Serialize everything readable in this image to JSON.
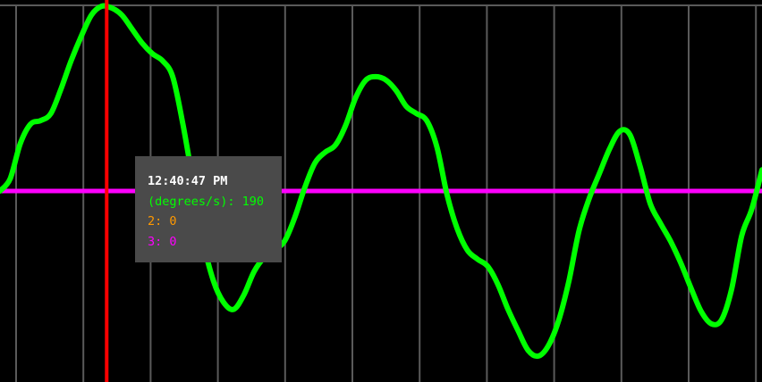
{
  "colors": {
    "background": "#000000",
    "grid": "#5a5a5a",
    "series_1": "#00ff00",
    "series_2": "#ff9900",
    "series_3": "#ff00ff",
    "cursor": "#ff0000",
    "tooltip_background": "#4a4a4a"
  },
  "tooltip": {
    "time": "12:40:47 PM",
    "rows": [
      {
        "label": "(degrees/s): 190",
        "color": "#00ff00"
      },
      {
        "label": "2: 0",
        "color": "#ff9900"
      },
      {
        "label": "3: 0",
        "color": "#ff00ff"
      }
    ]
  },
  "chart_data": {
    "type": "line",
    "title": "",
    "xlabel": "",
    "ylabel": "",
    "grid": true,
    "axis_labels_visible": false,
    "cursor_x": 1.05,
    "xlim": [
      0,
      7.5
    ],
    "ylim": [
      -1.05,
      1.05
    ],
    "series": [
      {
        "name": "(degrees/s)",
        "color": "#00ff00",
        "x": [
          0,
          0.1,
          0.2,
          0.3,
          0.4,
          0.5,
          0.6,
          0.7,
          0.8,
          0.9,
          1.0,
          1.1,
          1.2,
          1.3,
          1.4,
          1.5,
          1.6,
          1.7,
          1.8,
          1.9,
          2.0,
          2.1,
          2.2,
          2.3,
          2.4,
          2.5,
          2.6,
          2.7,
          2.8,
          2.9,
          3.0,
          3.1,
          3.2,
          3.3,
          3.4,
          3.5,
          3.6,
          3.7,
          3.8,
          3.9,
          4.0,
          4.1,
          4.2,
          4.3,
          4.4,
          4.5,
          4.6,
          4.7,
          4.8,
          4.9,
          5.0,
          5.1,
          5.2,
          5.3,
          5.4,
          5.5,
          5.6,
          5.7,
          5.8,
          5.9,
          6.0,
          6.1,
          6.2,
          6.3,
          6.4,
          6.5,
          6.6,
          6.7,
          6.8,
          6.9,
          7.0,
          7.1,
          7.2,
          7.3,
          7.4,
          7.5
        ],
        "values": [
          0.0,
          0.07,
          0.27,
          0.38,
          0.4,
          0.44,
          0.58,
          0.74,
          0.88,
          1.0,
          1.05,
          1.04,
          1.0,
          0.92,
          0.84,
          0.78,
          0.74,
          0.65,
          0.38,
          0.05,
          -0.28,
          -0.5,
          -0.62,
          -0.66,
          -0.58,
          -0.45,
          -0.37,
          -0.33,
          -0.28,
          -0.15,
          0.02,
          0.16,
          0.22,
          0.26,
          0.37,
          0.53,
          0.63,
          0.65,
          0.63,
          0.57,
          0.48,
          0.44,
          0.4,
          0.25,
          -0.02,
          -0.21,
          -0.33,
          -0.38,
          -0.42,
          -0.52,
          -0.66,
          -0.78,
          -0.89,
          -0.92,
          -0.86,
          -0.72,
          -0.5,
          -0.22,
          -0.04,
          0.1,
          0.24,
          0.34,
          0.32,
          0.14,
          -0.07,
          -0.18,
          -0.28,
          -0.4,
          -0.54,
          -0.67,
          -0.74,
          -0.72,
          -0.55,
          -0.25,
          -0.1,
          0.12
        ]
      },
      {
        "name": "2",
        "color": "#ff9900",
        "x": [
          0,
          7.5
        ],
        "values": [
          0,
          0
        ]
      },
      {
        "name": "3",
        "color": "#ff00ff",
        "x": [
          0,
          7.5
        ],
        "values": [
          0,
          0
        ]
      }
    ]
  }
}
